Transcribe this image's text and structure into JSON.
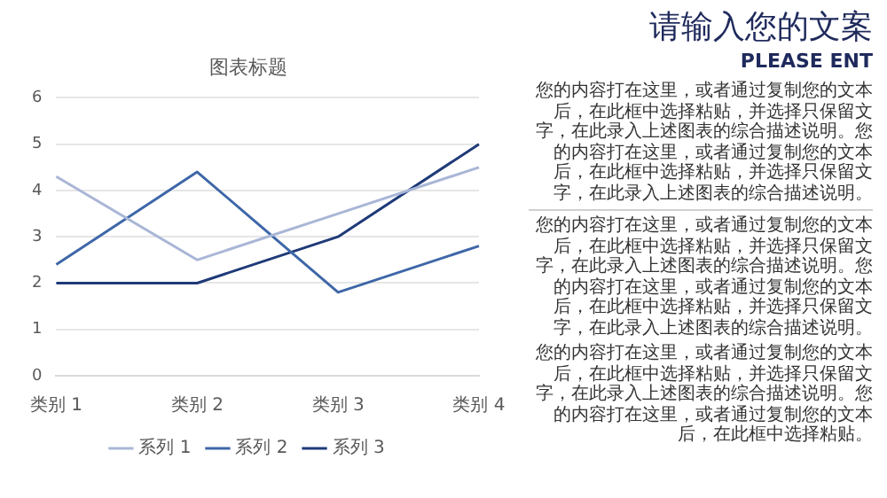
{
  "chart_data": {
    "type": "line",
    "title": "图表标题",
    "categories": [
      "类别 1",
      "类别 2",
      "类别 3",
      "类别 4"
    ],
    "series": [
      {
        "name": "系列 1",
        "color": "#a9b6d6",
        "values": [
          4.3,
          2.5,
          3.5,
          4.5
        ]
      },
      {
        "name": "系列 2",
        "color": "#3e67a8",
        "values": [
          2.4,
          4.4,
          1.8,
          2.8
        ]
      },
      {
        "name": "系列 3",
        "color": "#1f3a78",
        "values": [
          2,
          2,
          3,
          5
        ]
      }
    ],
    "ylim": [
      0,
      6
    ],
    "yticks": [
      0,
      1,
      2,
      3,
      4,
      5,
      6
    ],
    "grid": "y",
    "legend": "bottom",
    "marker": "none",
    "line_style": "solid",
    "annotations": [
      "请输入您的文案",
      "PLEASE ENT",
      "您的内容打在这里，或者通过复制您的文本后，在此框中选择粘贴，并选择只保留文字，在此录入上述图表的综合描述说明。您的内容打在这里，或者通过复制您的文本后，在此框中选择粘贴，并选择只保留文字，在此录入上述图表的综合描述说明。",
      "您的内容打在这里，或者通过复制您的文本后，在此框中选择粘贴，并选择只保留文字，在此录入上述图表的综合描述说明。您的内容打在这里，或者通过复制您的文本后，在此框中选择粘贴，并选择只保留文字，在此录入上述图表的综合描述说明。",
      "您的内容打在这里，或者通过复制您的文本后，在此框中选择粘贴，并选择只保留文字，在此录入上述图表的综合描述说明。您的内容打在这里，或者通过复制您的文本后，在此框中选择粘贴。"
    ]
  }
}
